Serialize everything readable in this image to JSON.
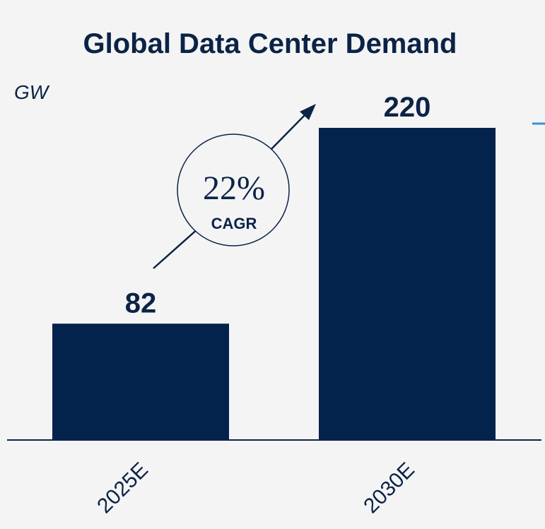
{
  "chart_data": {
    "type": "bar",
    "title": "Global Data Center Demand",
    "ylabel": "GW",
    "xlabel": "",
    "categories": [
      "2025E",
      "2030E"
    ],
    "values": [
      82,
      220
    ],
    "value_labels": [
      "82",
      "220"
    ],
    "ylim": [
      0,
      240
    ],
    "grid": false,
    "legend": "none",
    "annotation": {
      "value": "22%",
      "label": "CAGR"
    },
    "colors": {
      "bar": "#03224c",
      "text": "#0b2346",
      "axis": "#0b2346",
      "accent": "#3b8fd1",
      "background": "#f4f4f4"
    }
  }
}
